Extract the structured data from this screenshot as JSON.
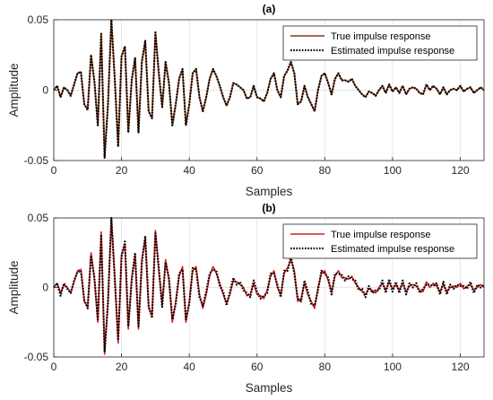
{
  "chart_data": [
    {
      "type": "line",
      "title": "(a)",
      "xlabel": "Samples",
      "ylabel": "Amplitude",
      "xlim": [
        0,
        127
      ],
      "ylim": [
        -0.05,
        0.05
      ],
      "xticks": [
        "0",
        "20",
        "40",
        "60",
        "80",
        "100",
        "120"
      ],
      "yticks": [
        "-0.05",
        "0",
        "0.05"
      ],
      "grid": true,
      "legend_position": "top-right",
      "x": [
        0,
        1,
        2,
        3,
        4,
        5,
        6,
        7,
        8,
        9,
        10,
        11,
        12,
        13,
        14,
        15,
        16,
        17,
        18,
        19,
        20,
        21,
        22,
        23,
        24,
        25,
        26,
        27,
        28,
        29,
        30,
        31,
        32,
        33,
        34,
        35,
        36,
        37,
        38,
        39,
        40,
        41,
        42,
        43,
        44,
        45,
        46,
        47,
        48,
        49,
        50,
        51,
        52,
        53,
        54,
        55,
        56,
        57,
        58,
        59,
        60,
        61,
        62,
        63,
        64,
        65,
        66,
        67,
        68,
        69,
        70,
        71,
        72,
        73,
        74,
        75,
        76,
        77,
        78,
        79,
        80,
        81,
        82,
        83,
        84,
        85,
        86,
        87,
        88,
        89,
        90,
        91,
        92,
        93,
        94,
        95,
        96,
        97,
        98,
        99,
        100,
        101,
        102,
        103,
        104,
        105,
        106,
        107,
        108,
        109,
        110,
        111,
        112,
        113,
        114,
        115,
        116,
        117,
        118,
        119,
        120,
        121,
        122,
        123,
        124,
        125,
        126,
        127
      ],
      "series": [
        {
          "name": "True impulse response",
          "color": "#8b3a0e",
          "style": "solid",
          "values": [
            0.0,
            0.003,
            -0.005,
            0.002,
            0.0,
            -0.004,
            0.004,
            0.012,
            0.013,
            -0.01,
            -0.014,
            0.025,
            0.006,
            -0.025,
            0.04,
            -0.048,
            -0.01,
            0.05,
            0.008,
            -0.04,
            0.024,
            0.031,
            -0.03,
            0.007,
            0.023,
            -0.03,
            0.02,
            0.035,
            -0.015,
            -0.02,
            0.041,
            0.012,
            -0.012,
            0.02,
            0.005,
            -0.025,
            -0.01,
            0.008,
            0.015,
            -0.025,
            -0.01,
            0.012,
            0.015,
            -0.005,
            -0.015,
            -0.005,
            0.008,
            0.015,
            0.01,
            0.003,
            -0.005,
            -0.011,
            -0.005,
            0.005,
            0.004,
            0.002,
            0.0,
            -0.006,
            -0.005,
            0.003,
            -0.005,
            -0.006,
            -0.008,
            -0.002,
            0.008,
            0.012,
            0.0,
            -0.005,
            0.01,
            0.014,
            0.02,
            0.012,
            -0.01,
            -0.008,
            0.003,
            -0.005,
            -0.01,
            -0.015,
            0.0,
            0.01,
            0.012,
            0.005,
            -0.003,
            0.008,
            0.012,
            0.007,
            0.007,
            0.006,
            0.008,
            0.003,
            0.0,
            -0.003,
            -0.005,
            -0.001,
            -0.002,
            -0.004,
            0.0,
            0.003,
            -0.002,
            0.004,
            -0.001,
            0.002,
            -0.002,
            0.003,
            -0.003,
            0.001,
            0.002,
            0.001,
            -0.002,
            -0.003,
            0.004,
            0.0,
            0.003,
            0.001,
            -0.003,
            0.002,
            -0.003,
            0.0,
            0.001,
            0.0,
            0.003,
            -0.001,
            0.001,
            0.002,
            -0.002,
            0.0,
            0.002,
            0.0
          ]
        },
        {
          "name": "Estimated impulse response",
          "color": "#000000",
          "style": "dotted",
          "values": [
            0.0,
            0.003,
            -0.005,
            0.002,
            0.0,
            -0.004,
            0.004,
            0.012,
            0.013,
            -0.01,
            -0.014,
            0.025,
            0.006,
            -0.025,
            0.04,
            -0.048,
            -0.01,
            0.05,
            0.008,
            -0.04,
            0.024,
            0.031,
            -0.03,
            0.007,
            0.023,
            -0.03,
            0.02,
            0.035,
            -0.015,
            -0.02,
            0.041,
            0.012,
            -0.012,
            0.02,
            0.005,
            -0.025,
            -0.01,
            0.008,
            0.015,
            -0.025,
            -0.01,
            0.012,
            0.015,
            -0.005,
            -0.015,
            -0.005,
            0.008,
            0.015,
            0.01,
            0.003,
            -0.005,
            -0.011,
            -0.005,
            0.005,
            0.004,
            0.002,
            0.0,
            -0.006,
            -0.005,
            0.003,
            -0.005,
            -0.006,
            -0.008,
            -0.002,
            0.008,
            0.012,
            0.0,
            -0.005,
            0.01,
            0.014,
            0.02,
            0.012,
            -0.01,
            -0.008,
            0.003,
            -0.005,
            -0.01,
            -0.015,
            0.0,
            0.01,
            0.012,
            0.005,
            -0.003,
            0.008,
            0.012,
            0.007,
            0.007,
            0.006,
            0.008,
            0.003,
            0.0,
            -0.003,
            -0.005,
            -0.001,
            -0.002,
            -0.004,
            0.0,
            0.003,
            -0.002,
            0.004,
            -0.001,
            0.002,
            -0.002,
            0.003,
            -0.003,
            0.001,
            0.002,
            0.001,
            -0.002,
            -0.003,
            0.004,
            0.0,
            0.003,
            0.001,
            -0.003,
            0.002,
            -0.003,
            0.0,
            0.001,
            0.0,
            0.003,
            -0.001,
            0.001,
            0.002,
            -0.002,
            0.0,
            0.002,
            0.0
          ]
        }
      ]
    },
    {
      "type": "line",
      "title": "(b)",
      "xlabel": "Samples",
      "ylabel": "Amplitude",
      "xlim": [
        0,
        127
      ],
      "ylim": [
        -0.05,
        0.05
      ],
      "xticks": [
        "0",
        "20",
        "40",
        "60",
        "80",
        "100",
        "120"
      ],
      "yticks": [
        "-0.05",
        "0",
        "0.05"
      ],
      "grid": true,
      "legend_position": "top-right",
      "x": [
        0,
        1,
        2,
        3,
        4,
        5,
        6,
        7,
        8,
        9,
        10,
        11,
        12,
        13,
        14,
        15,
        16,
        17,
        18,
        19,
        20,
        21,
        22,
        23,
        24,
        25,
        26,
        27,
        28,
        29,
        30,
        31,
        32,
        33,
        34,
        35,
        36,
        37,
        38,
        39,
        40,
        41,
        42,
        43,
        44,
        45,
        46,
        47,
        48,
        49,
        50,
        51,
        52,
        53,
        54,
        55,
        56,
        57,
        58,
        59,
        60,
        61,
        62,
        63,
        64,
        65,
        66,
        67,
        68,
        69,
        70,
        71,
        72,
        73,
        74,
        75,
        76,
        77,
        78,
        79,
        80,
        81,
        82,
        83,
        84,
        85,
        86,
        87,
        88,
        89,
        90,
        91,
        92,
        93,
        94,
        95,
        96,
        97,
        98,
        99,
        100,
        101,
        102,
        103,
        104,
        105,
        106,
        107,
        108,
        109,
        110,
        111,
        112,
        113,
        114,
        115,
        116,
        117,
        118,
        119,
        120,
        121,
        122,
        123,
        124,
        125,
        126,
        127
      ],
      "series": [
        {
          "name": "True impulse response",
          "color": "#d42020",
          "style": "solid",
          "values": [
            0.0,
            0.003,
            -0.004,
            0.002,
            0.0,
            -0.004,
            0.004,
            0.012,
            0.013,
            -0.01,
            -0.014,
            0.025,
            0.006,
            -0.025,
            0.04,
            -0.048,
            -0.01,
            0.05,
            0.008,
            -0.04,
            0.024,
            0.031,
            -0.03,
            0.007,
            0.023,
            -0.03,
            0.02,
            0.035,
            -0.015,
            -0.02,
            0.041,
            0.012,
            -0.012,
            0.02,
            0.005,
            -0.025,
            -0.01,
            0.008,
            0.015,
            -0.025,
            -0.01,
            0.012,
            0.015,
            -0.005,
            -0.015,
            -0.005,
            0.008,
            0.015,
            0.01,
            0.003,
            -0.005,
            -0.011,
            -0.005,
            0.005,
            0.004,
            0.002,
            0.0,
            -0.006,
            -0.005,
            0.003,
            -0.005,
            -0.006,
            -0.008,
            -0.002,
            0.008,
            0.012,
            0.0,
            -0.005,
            0.01,
            0.014,
            0.02,
            0.012,
            -0.01,
            -0.008,
            0.003,
            -0.005,
            -0.01,
            -0.015,
            0.0,
            0.01,
            0.012,
            0.005,
            -0.003,
            0.008,
            0.012,
            0.007,
            0.007,
            0.006,
            0.008,
            0.003,
            0.0,
            -0.003,
            -0.005,
            -0.001,
            -0.002,
            -0.004,
            0.0,
            0.003,
            -0.002,
            0.004,
            -0.001,
            0.002,
            -0.002,
            0.003,
            -0.003,
            0.001,
            0.002,
            0.001,
            -0.002,
            -0.003,
            0.004,
            0.0,
            0.003,
            0.001,
            -0.003,
            0.002,
            -0.003,
            0.0,
            0.001,
            0.0,
            0.003,
            -0.001,
            0.001,
            0.002,
            -0.002,
            0.0,
            0.002,
            0.0
          ]
        },
        {
          "name": "Estimated impulse response",
          "color": "#000000",
          "style": "dotted",
          "values": [
            0.0,
            0.003,
            -0.006,
            0.003,
            -0.001,
            -0.004,
            0.005,
            0.011,
            0.012,
            -0.009,
            -0.015,
            0.023,
            0.007,
            -0.023,
            0.038,
            -0.046,
            -0.011,
            0.05,
            0.006,
            -0.038,
            0.022,
            0.033,
            -0.028,
            0.005,
            0.025,
            -0.028,
            0.018,
            0.037,
            -0.013,
            -0.022,
            0.039,
            0.014,
            -0.014,
            0.018,
            0.007,
            -0.023,
            -0.012,
            0.01,
            0.013,
            -0.023,
            -0.012,
            0.014,
            0.013,
            -0.007,
            -0.013,
            -0.003,
            0.01,
            0.013,
            0.012,
            0.001,
            -0.003,
            -0.013,
            -0.003,
            0.007,
            0.002,
            0.004,
            -0.002,
            -0.004,
            -0.007,
            0.005,
            -0.003,
            -0.008,
            -0.006,
            -0.004,
            0.01,
            0.01,
            0.002,
            -0.007,
            0.012,
            0.012,
            0.022,
            0.01,
            -0.008,
            -0.01,
            0.005,
            -0.003,
            -0.012,
            -0.013,
            -0.002,
            0.012,
            0.01,
            0.007,
            -0.005,
            0.01,
            0.01,
            0.009,
            0.005,
            0.008,
            0.006,
            0.005,
            -0.002,
            -0.001,
            -0.007,
            0.001,
            -0.004,
            -0.002,
            -0.002,
            0.005,
            -0.004,
            0.006,
            -0.003,
            0.004,
            -0.004,
            0.005,
            -0.005,
            0.003,
            0.0,
            0.003,
            -0.004,
            -0.001,
            0.002,
            0.002,
            0.001,
            0.003,
            -0.005,
            0.004,
            -0.005,
            0.002,
            -0.001,
            0.002,
            0.001,
            0.001,
            -0.001,
            0.004,
            -0.004,
            0.002,
            0.0,
            0.002
          ]
        }
      ]
    }
  ]
}
